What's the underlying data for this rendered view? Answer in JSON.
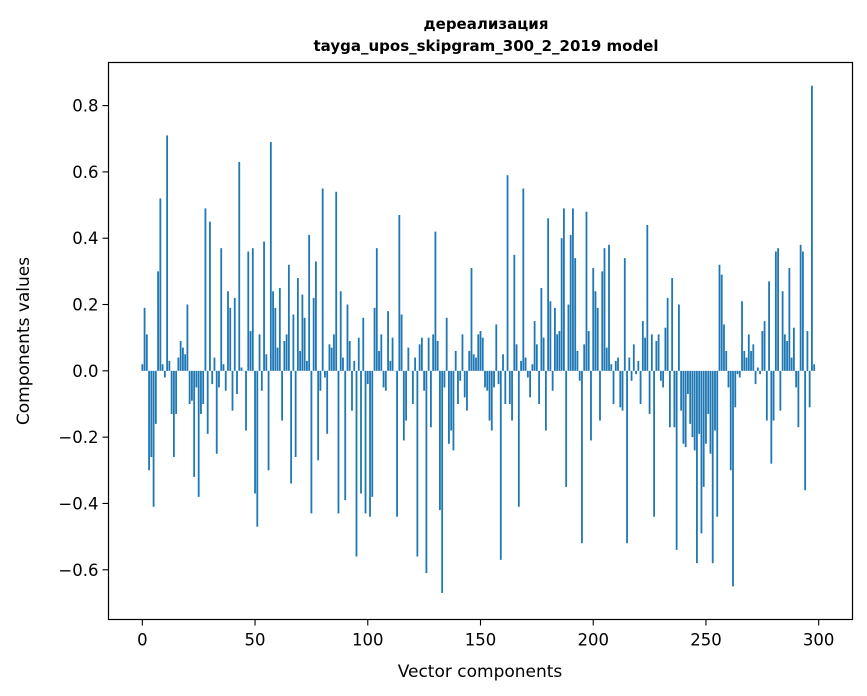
{
  "chart_data": {
    "type": "bar",
    "title": "дереализация",
    "subtitle": "tayga_upos_skipgram_300_2_2019 model",
    "xlabel": "Vector components",
    "ylabel": "Components values",
    "xlim": [
      -15,
      315
    ],
    "ylim": [
      -0.75,
      0.93
    ],
    "xticks": [
      0,
      50,
      100,
      150,
      200,
      250,
      300
    ],
    "xtick_labels": [
      "0",
      "50",
      "100",
      "150",
      "200",
      "250",
      "300"
    ],
    "yticks": [
      -0.6,
      -0.4,
      -0.2,
      0.0,
      0.2,
      0.4,
      0.6,
      0.8
    ],
    "ytick_labels": [
      "−0.6",
      "−0.4",
      "−0.2",
      "0.0",
      "0.2",
      "0.4",
      "0.6",
      "0.8"
    ],
    "bar_color": "#1f77b4",
    "grid": false,
    "values": [
      0.02,
      0.19,
      0.11,
      -0.3,
      -0.26,
      -0.41,
      -0.16,
      0.3,
      0.52,
      0.02,
      -0.02,
      0.71,
      0.03,
      -0.13,
      -0.26,
      -0.13,
      0.04,
      0.09,
      0.07,
      0.05,
      0.2,
      -0.1,
      -0.09,
      -0.32,
      -0.05,
      -0.38,
      -0.13,
      -0.1,
      0.49,
      -0.19,
      0.45,
      -0.04,
      0.04,
      -0.25,
      -0.05,
      0.37,
      0.02,
      -0.06,
      0.24,
      0.19,
      -0.12,
      0.22,
      -0.07,
      0.63,
      0.01,
      0.0,
      -0.18,
      0.36,
      0.12,
      0.37,
      -0.37,
      -0.47,
      0.11,
      -0.06,
      0.39,
      0.05,
      -0.3,
      0.69,
      0.24,
      0.19,
      0.07,
      0.25,
      -0.15,
      0.09,
      0.11,
      0.32,
      -0.34,
      0.17,
      -0.26,
      0.28,
      0.06,
      0.23,
      0.16,
      0.03,
      0.41,
      -0.43,
      0.22,
      0.33,
      -0.27,
      -0.06,
      0.55,
      -0.02,
      -0.19,
      0.08,
      0.07,
      0.11,
      0.54,
      -0.43,
      0.24,
      0.04,
      -0.39,
      0.2,
      0.09,
      -0.12,
      0.03,
      -0.56,
      0.1,
      -0.37,
      0.16,
      -0.43,
      -0.04,
      -0.44,
      -0.38,
      0.19,
      0.37,
      0.06,
      0.11,
      -0.05,
      -0.06,
      0.18,
      0.03,
      0.1,
      0.0,
      -0.44,
      0.47,
      0.17,
      -0.21,
      -0.15,
      0.07,
      0.0,
      -0.1,
      0.04,
      -0.56,
      0.08,
      0.1,
      -0.06,
      -0.61,
      0.1,
      -0.17,
      0.11,
      0.42,
      0.09,
      -0.42,
      -0.67,
      -0.05,
      0.16,
      -0.22,
      -0.18,
      -0.24,
      0.06,
      -0.1,
      -0.03,
      0.11,
      -0.08,
      -0.12,
      0.06,
      0.31,
      0.05,
      0.04,
      0.11,
      0.12,
      0.1,
      -0.05,
      -0.06,
      -0.15,
      -0.18,
      -0.05,
      0.14,
      -0.04,
      -0.57,
      0.05,
      -0.1,
      0.59,
      -0.1,
      -0.15,
      0.35,
      0.08,
      -0.41,
      0.03,
      0.55,
      0.04,
      -0.02,
      -0.08,
      0.02,
      0.15,
      0.08,
      -0.1,
      0.25,
      0.1,
      -0.18,
      0.46,
      0.21,
      -0.06,
      0.19,
      0.11,
      0.12,
      0.4,
      0.49,
      -0.35,
      0.2,
      0.41,
      0.49,
      0.34,
      0.06,
      -0.03,
      -0.52,
      0.08,
      0.48,
      0.12,
      -0.21,
      0.31,
      0.24,
      0.19,
      -0.15,
      0.3,
      0.37,
      0.07,
      0.38,
      0.02,
      -0.1,
      0.03,
      0.04,
      -0.11,
      -0.12,
      0.34,
      -0.52,
      0.04,
      -0.03,
      0.08,
      -0.01,
      0.03,
      -0.1,
      0.15,
      0.1,
      0.44,
      -0.13,
      0.11,
      -0.44,
      0.09,
      0.11,
      -0.03,
      -0.05,
      0.13,
      0.22,
      -0.17,
      0.28,
      -0.17,
      -0.54,
      0.2,
      -0.12,
      -0.22,
      -0.23,
      -0.07,
      -0.16,
      -0.2,
      -0.24,
      -0.58,
      -0.19,
      -0.49,
      -0.35,
      -0.22,
      -0.13,
      -0.25,
      -0.58,
      -0.18,
      -0.44,
      0.32,
      0.29,
      0.14,
      0.06,
      -0.05,
      -0.3,
      -0.65,
      -0.11,
      -0.01,
      -0.02,
      0.21,
      0.06,
      0.04,
      0.11,
      0.06,
      0.08,
      -0.04,
      0.01,
      -0.01,
      0.12,
      0.15,
      -0.15,
      0.27,
      -0.28,
      -0.15,
      0.36,
      0.37,
      -0.12,
      0.24,
      0.11,
      0.09,
      0.31,
      0.04,
      0.13,
      -0.05,
      -0.17,
      0.38,
      0.36,
      -0.36,
      0.12,
      -0.11,
      0.86,
      0.02
    ]
  }
}
